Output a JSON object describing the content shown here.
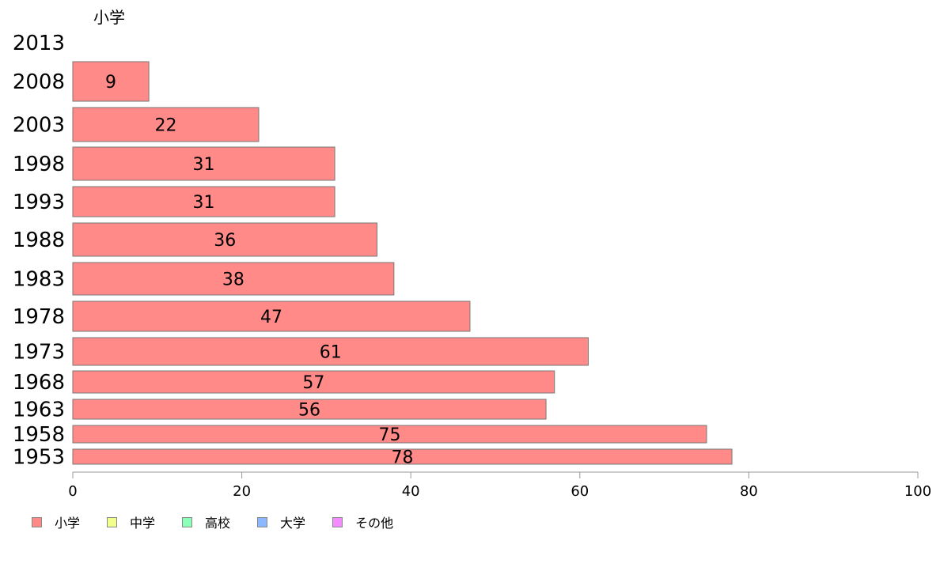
{
  "chart_data": {
    "type": "bar",
    "orientation": "horizontal",
    "title": "小学",
    "categories": [
      "2013",
      "2008",
      "2003",
      "1998",
      "1993",
      "1988",
      "1983",
      "1978",
      "1973",
      "1968",
      "1963",
      "1958",
      "1953"
    ],
    "series": [
      {
        "name": "小学",
        "color": "#ff8a87",
        "values": [
          null,
          9,
          22,
          31,
          31,
          36,
          38,
          47,
          61,
          57,
          56,
          75,
          78
        ]
      }
    ],
    "xlim": [
      0,
      100
    ],
    "xticks": [
      0,
      20,
      40,
      60,
      80,
      100
    ],
    "legend": {
      "placement": "bottom-left",
      "entries": [
        {
          "label": "小学",
          "color": "#ff8a87"
        },
        {
          "label": "中学",
          "color": "#f2ff8c"
        },
        {
          "label": "高校",
          "color": "#8cffb8"
        },
        {
          "label": "大学",
          "color": "#8cb8ff"
        },
        {
          "label": "その他",
          "color": "#f28cff"
        }
      ]
    },
    "grid": false
  }
}
